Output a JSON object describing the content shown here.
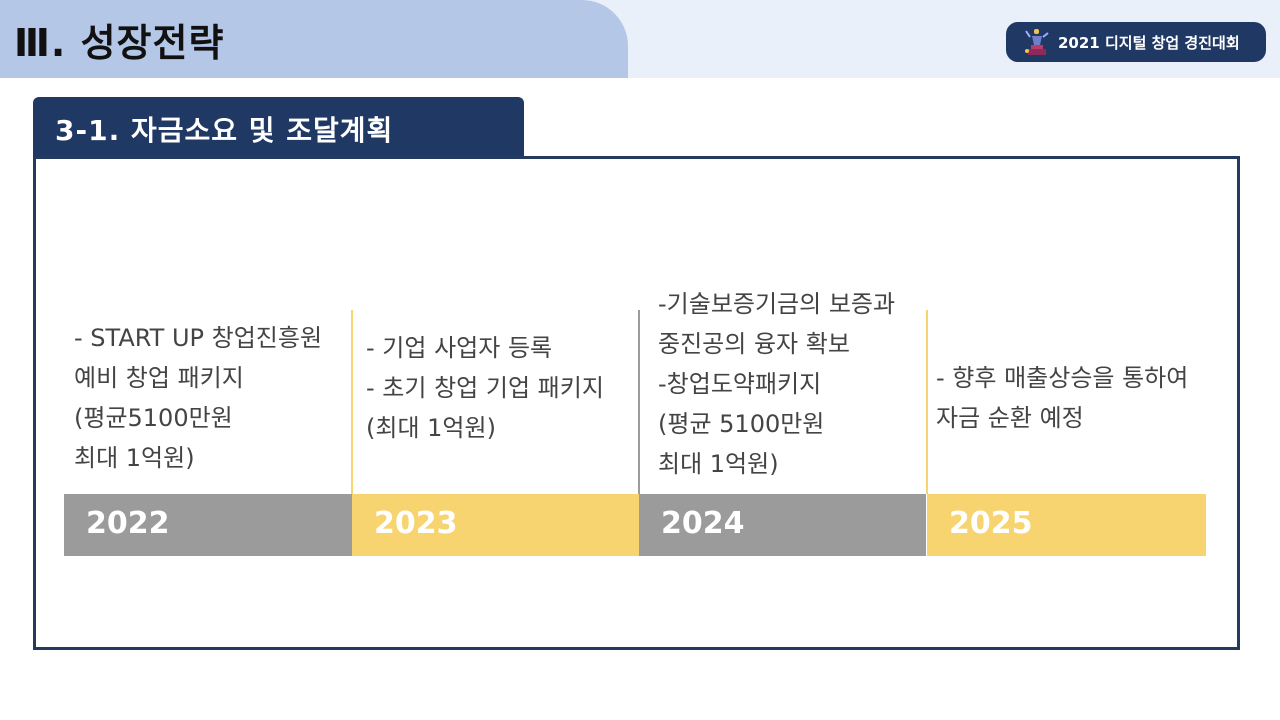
{
  "header": {
    "title": "Ⅲ. 성장전략",
    "badge_icon": "trophy-figure-icon",
    "badge_text": "2021 디지털 창업 경진대회"
  },
  "section": {
    "title": "3-1. 자금소요 및 조달계획"
  },
  "colors": {
    "navy": "#1f3864",
    "title_tab": "#b4c7e7",
    "gray_bar": "#9b9b9b",
    "yellow_bar": "#f8d470"
  },
  "timeline": [
    {
      "year": "2022",
      "lines": [
        "- START UP 창업진흥원",
        "예비 창업 패키지",
        "(평균5100만원",
        "최대 1억원)"
      ]
    },
    {
      "year": "2023",
      "lines": [
        "- 기업 사업자 등록",
        "- 초기 창업 기업 패키지",
        "(최대 1억원)"
      ]
    },
    {
      "year": "2024",
      "lines": [
        "-기술보증기금의 보증과",
        "중진공의 융자 확보",
        "-창업도약패키지",
        "(평균 5100만원",
        "최대 1억원)"
      ]
    },
    {
      "year": "2025",
      "lines": [
        "- 향후 매출상승을 통하여",
        "자금 순환 예정"
      ]
    }
  ]
}
